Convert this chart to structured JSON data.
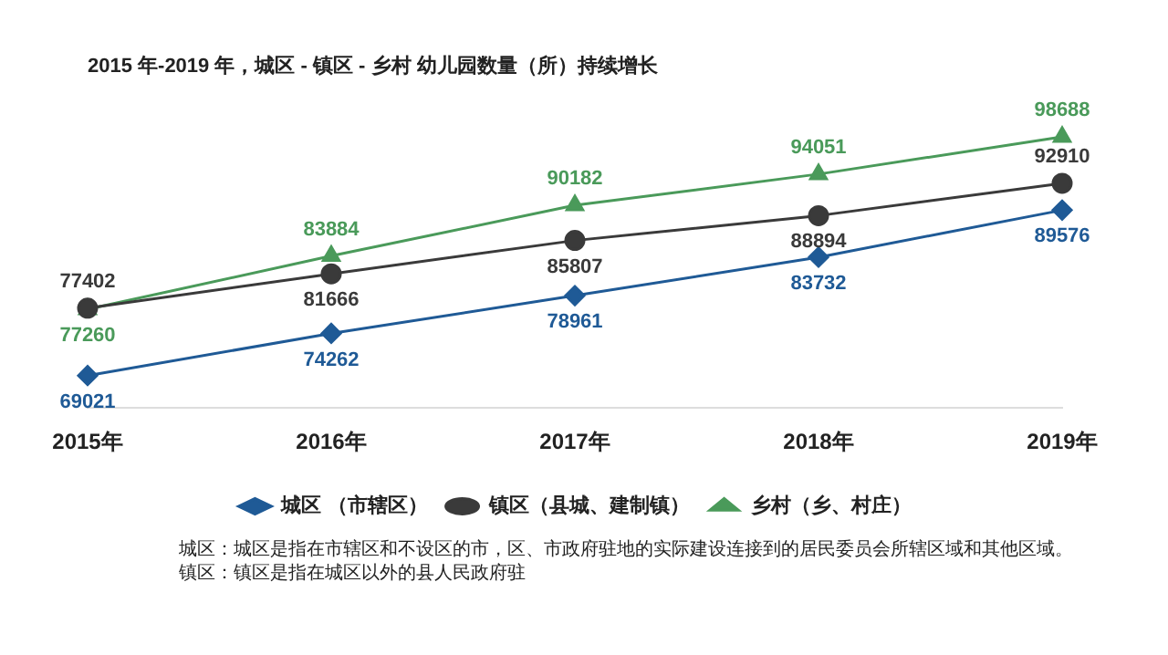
{
  "chart_data": {
    "type": "line",
    "title": "2015 年-2019 年，城区 - 镇区 - 乡村 幼儿园数量（所）持续增长",
    "categories": [
      "2015年",
      "2016年",
      "2017年",
      "2018年",
      "2019年"
    ],
    "series": [
      {
        "name": "城区 （市辖区）",
        "color": "#1f5a96",
        "marker": "diamond",
        "values": [
          69021,
          74262,
          78961,
          83732,
          89576
        ]
      },
      {
        "name": "镇区（县城、建制镇）",
        "color": "#3a3a3a",
        "marker": "circle",
        "values": [
          77402,
          81666,
          85807,
          88894,
          92910
        ]
      },
      {
        "name": "乡村（乡、村庄）",
        "color": "#4a9a5a",
        "marker": "triangle",
        "values": [
          77260,
          83884,
          90182,
          94051,
          98688
        ]
      }
    ],
    "data_labels": true,
    "legend": "bottom",
    "grid": false,
    "annotations": [
      "城区：城区是指在市辖区和不设区的市，区、市政府驻地的实际建设连接到的居民委员会所辖区域和其他区域。镇区：镇区是指在城区以外的县人民政府驻"
    ]
  }
}
